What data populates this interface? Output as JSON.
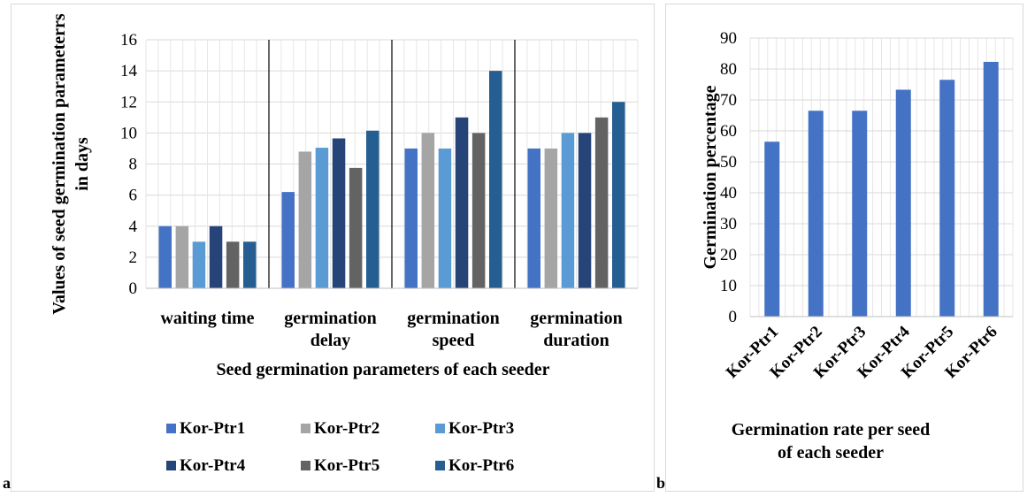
{
  "panel_labels": {
    "a": "a",
    "b": "b"
  },
  "colors": {
    "Kor-Ptr1": "#4472c4",
    "Kor-Ptr2": "#a5a5a5",
    "Kor-Ptr3": "#5b9bd5",
    "Kor-Ptr4": "#264478",
    "Kor-Ptr5": "#636363",
    "Kor-Ptr6": "#255e91",
    "single": "#4472c4",
    "grid": "#d9d9d9",
    "axis_text": "#000000"
  },
  "chart_data": [
    {
      "id": "a",
      "type": "bar",
      "title": "",
      "xlabel": "Seed germination parameters of each seeder",
      "ylabel": "Values of seed germination parameterrs in days",
      "ylabel_lines": [
        "Values of seed germination parameterrs",
        "in days"
      ],
      "ylim": [
        0,
        16
      ],
      "yticks": [
        0,
        2,
        4,
        6,
        8,
        10,
        12,
        14,
        16
      ],
      "grid": true,
      "legend": "bottom",
      "categories": [
        "waiting time",
        "germination delay",
        "germination speed",
        "germination duration"
      ],
      "category_lines": [
        [
          "waiting time"
        ],
        [
          "germination",
          "delay"
        ],
        [
          "germination",
          "speed"
        ],
        [
          "germination",
          "duration"
        ]
      ],
      "series": [
        {
          "name": "Kor-Ptr1",
          "values": [
            4,
            6.2,
            9,
            9
          ]
        },
        {
          "name": "Kor-Ptr2",
          "values": [
            4,
            8.8,
            10,
            9
          ]
        },
        {
          "name": "Kor-Ptr3",
          "values": [
            3,
            9.05,
            9,
            10
          ]
        },
        {
          "name": "Kor-Ptr4",
          "values": [
            4,
            9.65,
            11,
            10
          ]
        },
        {
          "name": "Kor-Ptr5",
          "values": [
            3,
            7.75,
            10,
            11
          ]
        },
        {
          "name": "Kor-Ptr6",
          "values": [
            3,
            10.15,
            14,
            12
          ]
        }
      ]
    },
    {
      "id": "b",
      "type": "bar",
      "title": "",
      "xlabel": "Germination rate per seed of each seeder",
      "xlabel_lines": [
        "Germination rate per seed",
        "of each seeder"
      ],
      "ylabel": "Germination percentage",
      "ylim": [
        0,
        90
      ],
      "yticks": [
        0,
        10,
        20,
        30,
        40,
        50,
        60,
        70,
        80,
        90
      ],
      "grid": true,
      "categories": [
        "Kor-Ptr1",
        "Kor-Ptr2",
        "Kor-Ptr3",
        "Kor-Ptr4",
        "Kor-Ptr5",
        "Kor-Ptr6"
      ],
      "values": [
        56.5,
        66.5,
        66.5,
        73.3,
        76.5,
        82.3
      ]
    }
  ]
}
